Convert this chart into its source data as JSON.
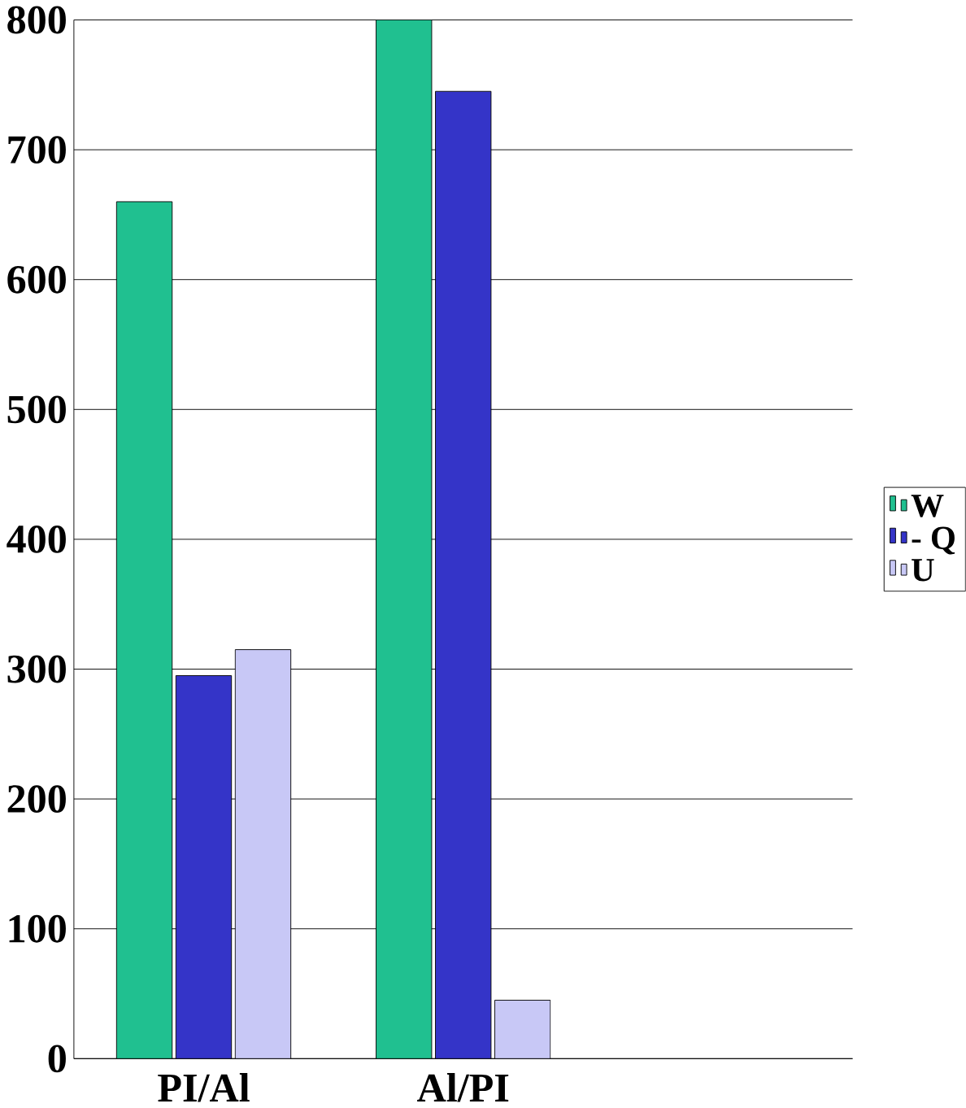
{
  "chart_data": {
    "type": "bar",
    "categories": [
      "PI/Al",
      "Al/PI",
      null
    ],
    "series": [
      {
        "name": "W",
        "color": "#20c090",
        "values": [
          660,
          800,
          null
        ]
      },
      {
        "name": "- Q",
        "color": "#3434c8",
        "values": [
          295,
          745,
          null
        ]
      },
      {
        "name": "U",
        "color": "#c8c8f6",
        "values": [
          315,
          45,
          null
        ]
      }
    ],
    "ylim": [
      0,
      800
    ],
    "yticks": [
      0,
      100,
      200,
      300,
      400,
      500,
      600,
      700,
      800
    ],
    "grid": "y",
    "legend": "right"
  }
}
